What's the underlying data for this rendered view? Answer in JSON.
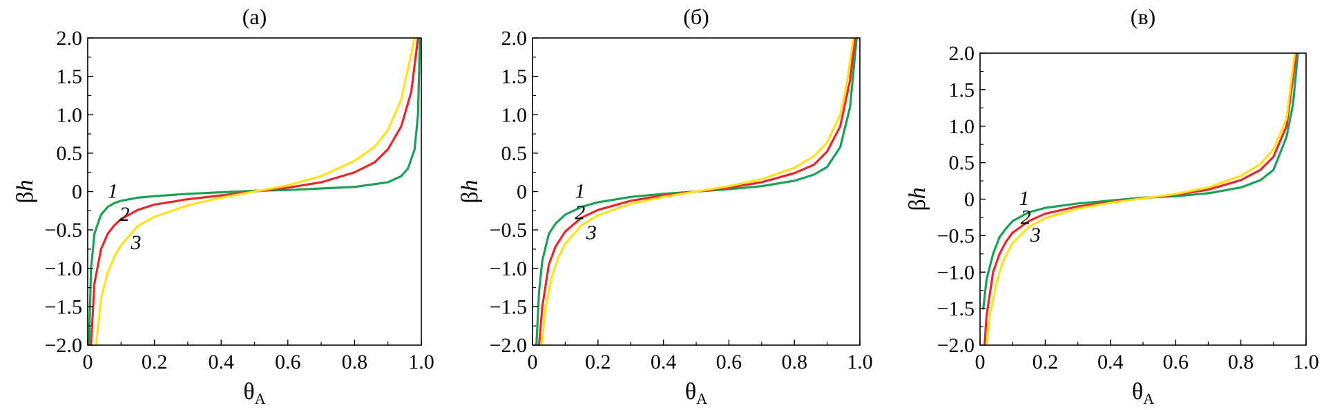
{
  "chart_data": [
    {
      "type": "line",
      "title": "(а)",
      "xlabel": "θA",
      "ylabel": "βh",
      "xlim": [
        0,
        1.0
      ],
      "ylim": [
        -2.0,
        2.0
      ],
      "x_ticks": [
        "0",
        "0.2",
        "0.4",
        "0.6",
        "0.8",
        "1.0"
      ],
      "y_ticks": [
        "2.0",
        "1.5",
        "1.0",
        "0.5",
        "0",
        "−0.5",
        "−1.0",
        "−1.5",
        "−2.0"
      ],
      "grid": false,
      "series": [
        {
          "label": "1",
          "color": "#1aa156",
          "x": [
            0.004,
            0.01,
            0.02,
            0.04,
            0.06,
            0.08,
            0.1,
            0.15,
            0.2,
            0.3,
            0.4,
            0.5,
            0.6,
            0.7,
            0.8,
            0.9,
            0.94,
            0.96,
            0.98,
            0.99,
            0.996
          ],
          "y": [
            -2.0,
            -1.0,
            -0.55,
            -0.3,
            -0.2,
            -0.15,
            -0.12,
            -0.08,
            -0.06,
            -0.03,
            -0.01,
            0.01,
            0.02,
            0.04,
            0.06,
            0.12,
            0.2,
            0.3,
            0.55,
            1.0,
            2.0
          ]
        },
        {
          "label": "2",
          "color": "#e8262b",
          "x": [
            0.01,
            0.02,
            0.04,
            0.06,
            0.08,
            0.1,
            0.15,
            0.2,
            0.3,
            0.4,
            0.5,
            0.6,
            0.7,
            0.8,
            0.86,
            0.9,
            0.94,
            0.97,
            0.99
          ],
          "y": [
            -2.0,
            -1.2,
            -0.75,
            -0.55,
            -0.44,
            -0.36,
            -0.24,
            -0.17,
            -0.1,
            -0.05,
            0.0,
            0.05,
            0.12,
            0.25,
            0.38,
            0.55,
            0.85,
            1.3,
            2.0
          ]
        },
        {
          "label": "3",
          "color": "#ffe11a",
          "x": [
            0.025,
            0.04,
            0.06,
            0.08,
            0.1,
            0.15,
            0.2,
            0.3,
            0.4,
            0.5,
            0.6,
            0.7,
            0.8,
            0.86,
            0.9,
            0.94,
            0.96,
            0.98
          ],
          "y": [
            -2.0,
            -1.4,
            -1.05,
            -0.85,
            -0.7,
            -0.45,
            -0.33,
            -0.18,
            -0.08,
            0.0,
            0.08,
            0.2,
            0.4,
            0.58,
            0.8,
            1.2,
            1.6,
            2.0
          ]
        }
      ],
      "annotations": [
        {
          "text": "1",
          "x": 0.075,
          "y": -0.08
        },
        {
          "text": "2",
          "x": 0.11,
          "y": -0.38
        },
        {
          "text": "3",
          "x": 0.145,
          "y": -0.75
        }
      ]
    },
    {
      "type": "line",
      "title": "(б)",
      "xlabel": "θA",
      "ylabel": "βh",
      "xlim": [
        0,
        1.0
      ],
      "ylim": [
        -2.0,
        2.0
      ],
      "x_ticks": [
        "0",
        "0.2",
        "0.4",
        "0.6",
        "0.8",
        "1.0"
      ],
      "y_ticks": [
        "2.0",
        "1.5",
        "1.0",
        "0.5",
        "0",
        "−0.5",
        "−1.0",
        "−1.5",
        "−2.0"
      ],
      "grid": false,
      "series": [
        {
          "label": "1",
          "color": "#1aa156",
          "x": [
            0.012,
            0.02,
            0.03,
            0.05,
            0.07,
            0.1,
            0.15,
            0.2,
            0.3,
            0.4,
            0.5,
            0.6,
            0.7,
            0.8,
            0.86,
            0.9,
            0.94,
            0.97,
            0.99
          ],
          "y": [
            -2.0,
            -1.3,
            -0.9,
            -0.55,
            -0.42,
            -0.3,
            -0.2,
            -0.14,
            -0.07,
            -0.03,
            0.0,
            0.03,
            0.07,
            0.14,
            0.22,
            0.32,
            0.58,
            1.1,
            2.0
          ]
        },
        {
          "label": "2",
          "color": "#e8262b",
          "x": [
            0.02,
            0.03,
            0.05,
            0.07,
            0.1,
            0.15,
            0.2,
            0.3,
            0.4,
            0.5,
            0.6,
            0.7,
            0.8,
            0.86,
            0.9,
            0.94,
            0.97,
            0.985
          ],
          "y": [
            -2.0,
            -1.5,
            -0.95,
            -0.72,
            -0.52,
            -0.34,
            -0.24,
            -0.12,
            -0.05,
            0.0,
            0.05,
            0.12,
            0.24,
            0.35,
            0.52,
            0.85,
            1.45,
            2.0
          ]
        },
        {
          "label": "3",
          "color": "#ffe11a",
          "x": [
            0.028,
            0.04,
            0.06,
            0.08,
            0.1,
            0.15,
            0.2,
            0.3,
            0.4,
            0.5,
            0.6,
            0.7,
            0.8,
            0.86,
            0.9,
            0.94,
            0.96,
            0.98
          ],
          "y": [
            -2.0,
            -1.5,
            -1.1,
            -0.85,
            -0.68,
            -0.44,
            -0.31,
            -0.16,
            -0.07,
            0.0,
            0.07,
            0.16,
            0.31,
            0.46,
            0.64,
            1.0,
            1.4,
            2.0
          ]
        }
      ],
      "annotations": [
        {
          "text": "1",
          "x": 0.145,
          "y": -0.08
        },
        {
          "text": "2",
          "x": 0.145,
          "y": -0.36
        },
        {
          "text": "3",
          "x": 0.18,
          "y": -0.62
        }
      ]
    },
    {
      "type": "line",
      "title": "(в)",
      "xlabel": "θA",
      "ylabel": "βh",
      "xlim": [
        0,
        1.0
      ],
      "ylim": [
        -2.0,
        2.0
      ],
      "x_ticks": [
        "0",
        "0.2",
        "0.4",
        "0.6",
        "0.8",
        "1.0"
      ],
      "y_ticks": [
        "2.0",
        "1.5",
        "1.0",
        "0.5",
        "0",
        "−0.5",
        "−1.0",
        "−1.5",
        "−2.0"
      ],
      "grid": false,
      "series": [
        {
          "label": "1",
          "color": "#1aa156",
          "x": [
            0.01,
            0.02,
            0.04,
            0.06,
            0.08,
            0.1,
            0.15,
            0.2,
            0.3,
            0.4,
            0.5,
            0.6,
            0.7,
            0.8,
            0.86,
            0.9,
            0.94,
            0.96,
            0.975
          ],
          "y": [
            -1.5,
            -1.1,
            -0.75,
            -0.52,
            -0.4,
            -0.3,
            -0.18,
            -0.12,
            -0.06,
            -0.02,
            0.02,
            0.04,
            0.08,
            0.16,
            0.26,
            0.4,
            0.85,
            1.3,
            2.0
          ]
        },
        {
          "label": "2",
          "color": "#e8262b",
          "x": [
            0.014,
            0.02,
            0.04,
            0.06,
            0.08,
            0.1,
            0.15,
            0.2,
            0.3,
            0.4,
            0.5,
            0.6,
            0.7,
            0.8,
            0.86,
            0.9,
            0.94,
            0.97
          ],
          "y": [
            -2.0,
            -1.6,
            -1.0,
            -0.75,
            -0.58,
            -0.46,
            -0.3,
            -0.2,
            -0.1,
            -0.04,
            0.01,
            0.06,
            0.13,
            0.26,
            0.4,
            0.58,
            1.0,
            2.0
          ]
        },
        {
          "label": "3",
          "color": "#ffe11a",
          "x": [
            0.02,
            0.03,
            0.05,
            0.07,
            0.1,
            0.15,
            0.2,
            0.3,
            0.4,
            0.5,
            0.6,
            0.7,
            0.8,
            0.86,
            0.9,
            0.94,
            0.965
          ],
          "y": [
            -2.0,
            -1.6,
            -1.15,
            -0.86,
            -0.6,
            -0.38,
            -0.26,
            -0.13,
            -0.05,
            0.01,
            0.07,
            0.16,
            0.32,
            0.48,
            0.68,
            1.1,
            2.0
          ]
        }
      ],
      "annotations": [
        {
          "text": "1",
          "x": 0.135,
          "y": -0.08
        },
        {
          "text": "2",
          "x": 0.14,
          "y": -0.34
        },
        {
          "text": "3",
          "x": 0.17,
          "y": -0.58
        }
      ]
    }
  ]
}
